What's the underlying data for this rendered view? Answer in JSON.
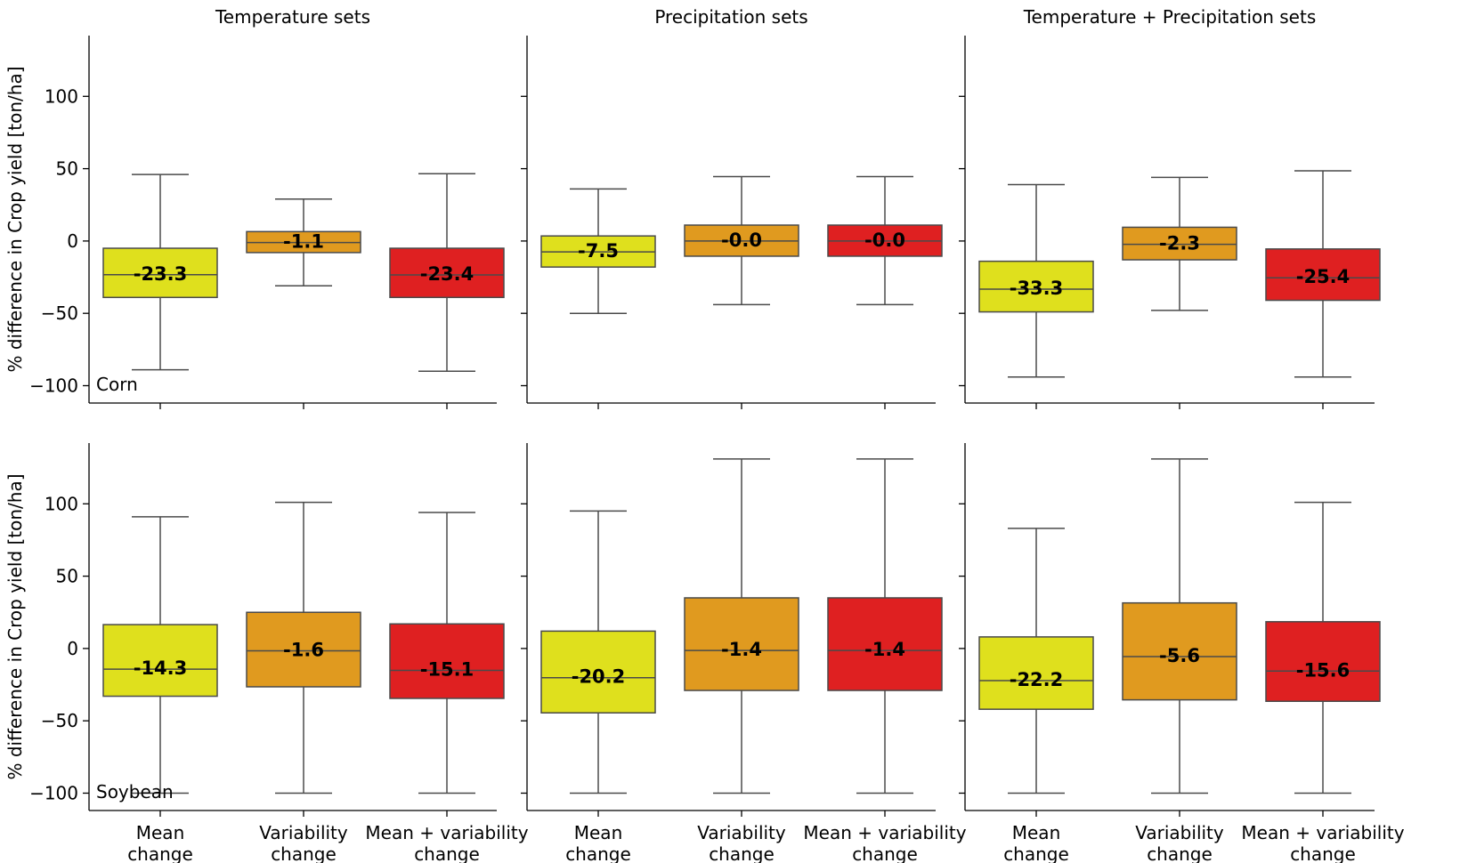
{
  "chart_data": {
    "type": "box",
    "y_label": "% difference in Crop yield [ton/ha]",
    "ylim": [
      -112,
      142
    ],
    "yticks": [
      -100,
      -50,
      0,
      50,
      100
    ],
    "categories": [
      "Mean\nchange",
      "Variability\nchange",
      "Mean + variability\nchange"
    ],
    "colors": [
      "#dfe01d",
      "#e09a1f",
      "#df2021"
    ],
    "columns": [
      "Temperature sets",
      "Precipitation sets",
      "Temperature + Precipitation sets"
    ],
    "rows": [
      "Corn",
      "Soybean"
    ],
    "panels": [
      {
        "row": "Corn",
        "column": "Temperature sets",
        "boxes": [
          {
            "category": "Mean change",
            "whisker_low": -89,
            "q1": -39,
            "median": -23.3,
            "q3": -5,
            "whisker_high": 46,
            "label": "-23.3"
          },
          {
            "category": "Variability change",
            "whisker_low": -31,
            "q1": -8,
            "median": -1.1,
            "q3": 6.5,
            "whisker_high": 29,
            "label": "-1.1"
          },
          {
            "category": "Mean + variability change",
            "whisker_low": -90,
            "q1": -39,
            "median": -23.4,
            "q3": -5,
            "whisker_high": 46.5,
            "label": "-23.4"
          }
        ]
      },
      {
        "row": "Corn",
        "column": "Precipitation sets",
        "boxes": [
          {
            "category": "Mean change",
            "whisker_low": -50,
            "q1": -18,
            "median": -7.5,
            "q3": 3.5,
            "whisker_high": 36,
            "label": "-7.5"
          },
          {
            "category": "Variability change",
            "whisker_low": -44,
            "q1": -10.5,
            "median": 0,
            "q3": 11,
            "whisker_high": 44.5,
            "label": "-0.0"
          },
          {
            "category": "Mean + variability change",
            "whisker_low": -44,
            "q1": -10.5,
            "median": 0,
            "q3": 11,
            "whisker_high": 44.5,
            "label": "-0.0"
          }
        ]
      },
      {
        "row": "Corn",
        "column": "Temperature + Precipitation sets",
        "boxes": [
          {
            "category": "Mean change",
            "whisker_low": -94,
            "q1": -49,
            "median": -33.3,
            "q3": -14,
            "whisker_high": 39,
            "label": "-33.3"
          },
          {
            "category": "Variability change",
            "whisker_low": -48,
            "q1": -13,
            "median": -2.3,
            "q3": 9.5,
            "whisker_high": 44,
            "label": "-2.3"
          },
          {
            "category": "Mean + variability change",
            "whisker_low": -94,
            "q1": -41,
            "median": -25.4,
            "q3": -5.5,
            "whisker_high": 48.5,
            "label": "-25.4"
          }
        ]
      },
      {
        "row": "Soybean",
        "column": "Temperature sets",
        "boxes": [
          {
            "category": "Mean change",
            "whisker_low": -100,
            "q1": -33,
            "median": -14.3,
            "q3": 16.5,
            "whisker_high": 91,
            "label": "-14.3"
          },
          {
            "category": "Variability change",
            "whisker_low": -100,
            "q1": -26.5,
            "median": -1.6,
            "q3": 25,
            "whisker_high": 101,
            "label": "-1.6"
          },
          {
            "category": "Mean + variability change",
            "whisker_low": -100,
            "q1": -34.5,
            "median": -15.1,
            "q3": 17,
            "whisker_high": 94,
            "label": "-15.1"
          }
        ]
      },
      {
        "row": "Soybean",
        "column": "Precipitation sets",
        "boxes": [
          {
            "category": "Mean change",
            "whisker_low": -100,
            "q1": -44.5,
            "median": -20.2,
            "q3": 12,
            "whisker_high": 95,
            "label": "-20.2"
          },
          {
            "category": "Variability change",
            "whisker_low": -100,
            "q1": -29,
            "median": -1.4,
            "q3": 35,
            "whisker_high": 131,
            "label": "-1.4"
          },
          {
            "category": "Mean + variability change",
            "whisker_low": -100,
            "q1": -29,
            "median": -1.4,
            "q3": 35,
            "whisker_high": 131,
            "label": "-1.4"
          }
        ]
      },
      {
        "row": "Soybean",
        "column": "Temperature + Precipitation sets",
        "boxes": [
          {
            "category": "Mean change",
            "whisker_low": -100,
            "q1": -42,
            "median": -22.2,
            "q3": 8,
            "whisker_high": 83,
            "label": "-22.2"
          },
          {
            "category": "Variability change",
            "whisker_low": -100,
            "q1": -35.5,
            "median": -5.6,
            "q3": 31.5,
            "whisker_high": 131,
            "label": "-5.6"
          },
          {
            "category": "Mean + variability change",
            "whisker_low": -100,
            "q1": -36.5,
            "median": -15.6,
            "q3": 18.5,
            "whisker_high": 101,
            "label": "-15.6"
          }
        ]
      }
    ]
  }
}
